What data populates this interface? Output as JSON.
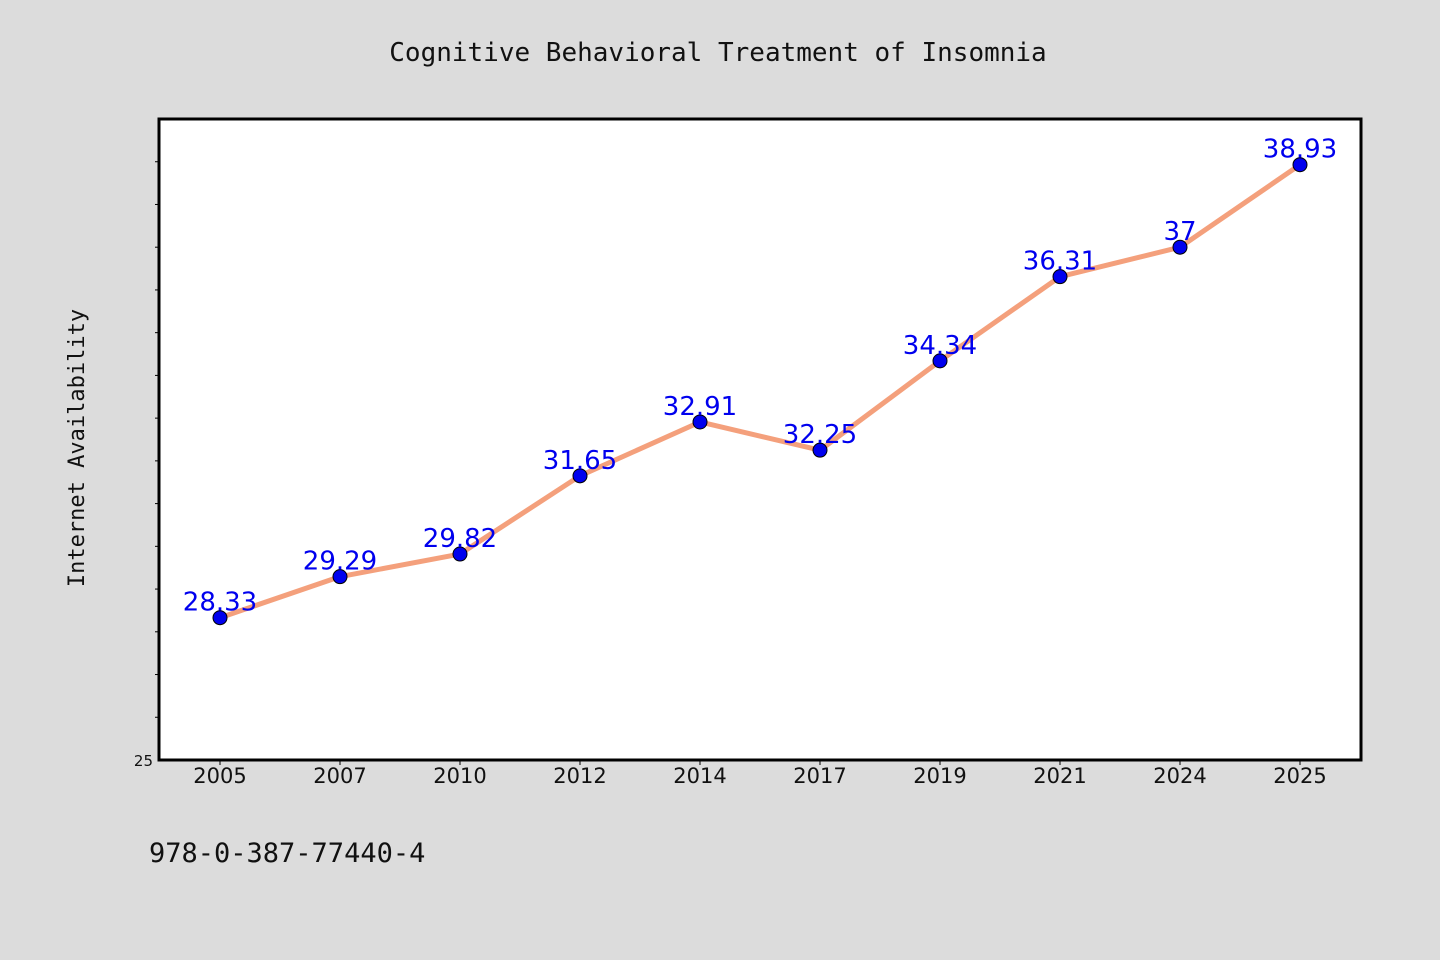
{
  "chart_data": {
    "type": "line",
    "title": "Cognitive Behavioral Treatment of Insomnia",
    "xlabel": "",
    "ylabel": "Internet Availability",
    "categories": [
      "2005",
      "2007",
      "2010",
      "2012",
      "2014",
      "2017",
      "2019",
      "2021",
      "2024",
      "2025"
    ],
    "values": [
      28.33,
      29.29,
      29.82,
      31.65,
      32.91,
      32.25,
      34.34,
      36.31,
      37,
      38.93
    ],
    "data_labels": [
      "28.33",
      "29.29",
      "29.82",
      "31.65",
      "32.91",
      "32.25",
      "34.34",
      "36.31",
      "37",
      "38.93"
    ],
    "ylim": [
      25,
      40
    ],
    "ytick_labels": [
      "25"
    ],
    "grid": false,
    "legend": "none",
    "colors": {
      "line": "#f4a07c",
      "marker": "#0000ee",
      "data_label": "#0000ee",
      "plot_background": "#ffffff",
      "page_background": "#dcdcdc"
    }
  },
  "footer": {
    "text": "978-0-387-77440-4"
  }
}
